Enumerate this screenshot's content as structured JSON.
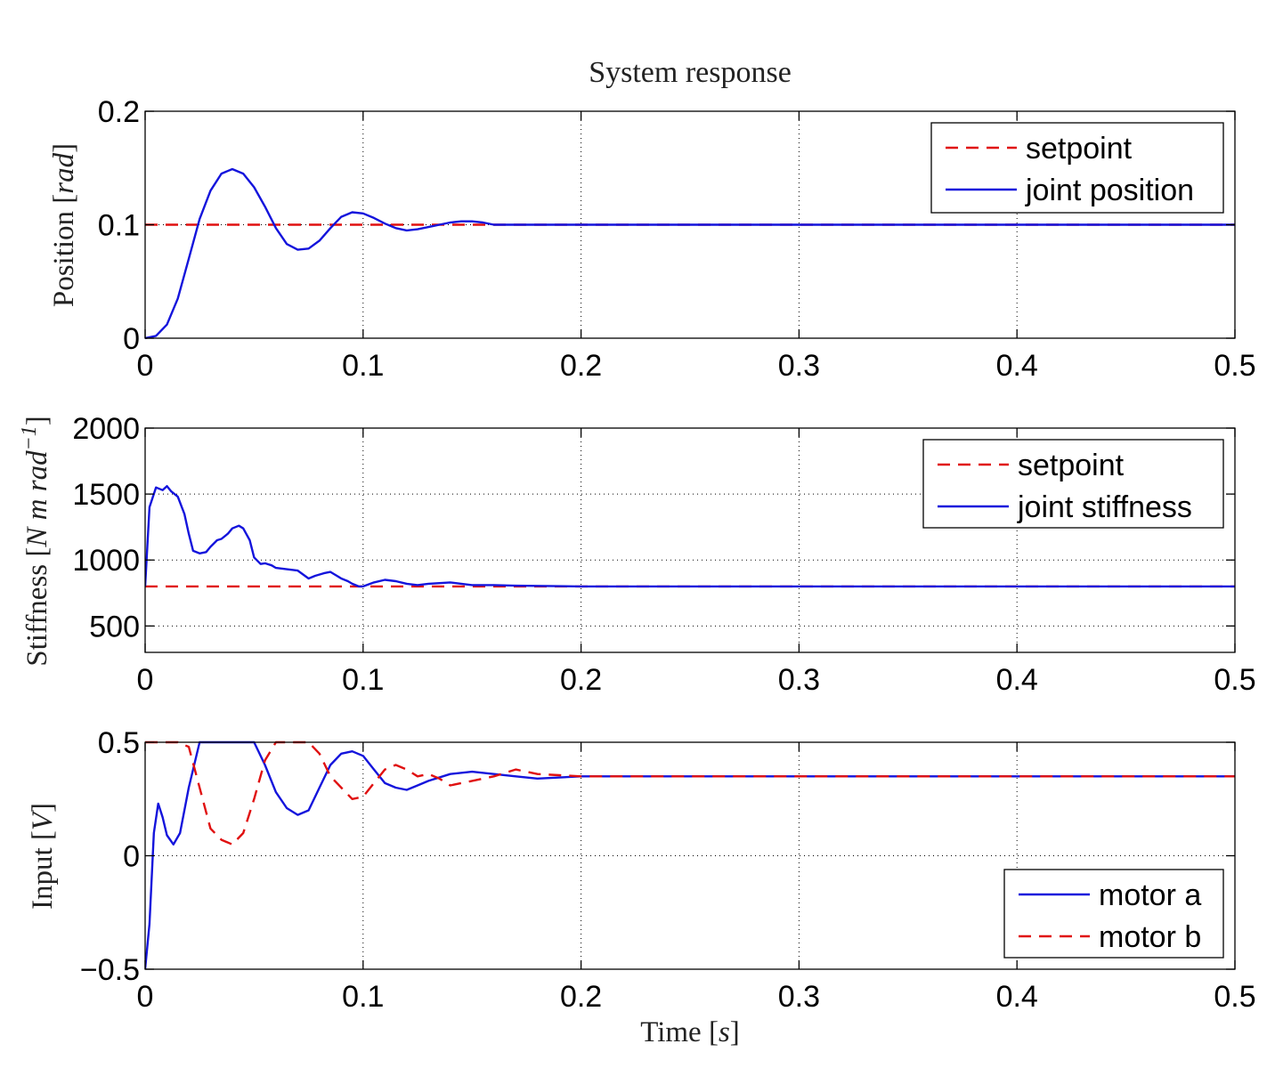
{
  "title": "System response",
  "xlabel": "Time",
  "xlabel_unit": "s",
  "colors": {
    "setpoint": "#e01010",
    "response": "#1414dc",
    "grid": "#000000"
  },
  "chart_data": [
    {
      "type": "line",
      "name": "position",
      "ylabel": "Position",
      "ylabel_unit": "rad",
      "xlim": [
        0,
        0.5
      ],
      "ylim": [
        0,
        0.2
      ],
      "xticks": [
        0,
        0.1,
        0.2,
        0.3,
        0.4,
        0.5
      ],
      "xtick_labels": [
        "0",
        "0.1",
        "0.2",
        "0.3",
        "0.4",
        "0.5"
      ],
      "yticks": [
        0,
        0.1,
        0.2
      ],
      "ytick_labels": [
        "0",
        "0.1",
        "0.2"
      ],
      "grid": true,
      "legend_position": "top-right",
      "series": [
        {
          "name": "setpoint",
          "style": "dashed",
          "color": "#e01010",
          "x": [
            0,
            0.5
          ],
          "y": [
            0.1,
            0.1
          ]
        },
        {
          "name": "joint position",
          "style": "solid",
          "color": "#1414dc",
          "x": [
            0,
            0.005,
            0.01,
            0.015,
            0.02,
            0.025,
            0.03,
            0.035,
            0.04,
            0.045,
            0.05,
            0.055,
            0.06,
            0.065,
            0.07,
            0.075,
            0.08,
            0.085,
            0.09,
            0.095,
            0.1,
            0.105,
            0.11,
            0.115,
            0.12,
            0.125,
            0.13,
            0.135,
            0.14,
            0.145,
            0.15,
            0.155,
            0.16,
            0.17,
            0.18,
            0.2,
            0.23,
            0.25,
            0.3,
            0.35,
            0.4,
            0.45,
            0.5
          ],
          "y": [
            0,
            0.002,
            0.012,
            0.035,
            0.07,
            0.105,
            0.13,
            0.145,
            0.149,
            0.145,
            0.133,
            0.116,
            0.097,
            0.083,
            0.078,
            0.079,
            0.086,
            0.097,
            0.107,
            0.111,
            0.11,
            0.106,
            0.101,
            0.097,
            0.095,
            0.096,
            0.098,
            0.1,
            0.102,
            0.103,
            0.103,
            0.102,
            0.1,
            0.1,
            0.1,
            0.1,
            0.1,
            0.1,
            0.1,
            0.1,
            0.1,
            0.1,
            0.1
          ]
        }
      ],
      "legend": [
        "setpoint",
        "joint position"
      ]
    },
    {
      "type": "line",
      "name": "stiffness",
      "ylabel": "Stiffness",
      "ylabel_unit": "N m rad",
      "ylabel_exponent": "−1",
      "xlim": [
        0,
        0.5
      ],
      "ylim": [
        300,
        2000
      ],
      "xticks": [
        0,
        0.1,
        0.2,
        0.3,
        0.4,
        0.5
      ],
      "xtick_labels": [
        "0",
        "0.1",
        "0.2",
        "0.3",
        "0.4",
        "0.5"
      ],
      "yticks": [
        500,
        1000,
        1500,
        2000
      ],
      "ytick_labels": [
        "500",
        "1000",
        "1500",
        "2000"
      ],
      "grid": true,
      "legend_position": "top-right",
      "series": [
        {
          "name": "setpoint",
          "style": "dashed",
          "color": "#e01010",
          "x": [
            0,
            0.5
          ],
          "y": [
            800,
            800
          ]
        },
        {
          "name": "joint stiffness",
          "style": "solid",
          "color": "#1414dc",
          "x": [
            0,
            0.002,
            0.005,
            0.008,
            0.01,
            0.012,
            0.015,
            0.018,
            0.02,
            0.022,
            0.025,
            0.028,
            0.03,
            0.033,
            0.035,
            0.038,
            0.04,
            0.043,
            0.045,
            0.048,
            0.05,
            0.053,
            0.055,
            0.058,
            0.06,
            0.065,
            0.07,
            0.075,
            0.078,
            0.082,
            0.085,
            0.088,
            0.09,
            0.093,
            0.095,
            0.098,
            0.1,
            0.105,
            0.11,
            0.115,
            0.12,
            0.125,
            0.13,
            0.14,
            0.15,
            0.16,
            0.17,
            0.2,
            0.25,
            0.3,
            0.35,
            0.4,
            0.45,
            0.5
          ],
          "y": [
            800,
            1400,
            1550,
            1530,
            1560,
            1520,
            1480,
            1350,
            1200,
            1070,
            1050,
            1060,
            1100,
            1150,
            1160,
            1200,
            1240,
            1260,
            1240,
            1150,
            1020,
            970,
            975,
            960,
            940,
            930,
            920,
            860,
            880,
            900,
            910,
            880,
            860,
            840,
            820,
            800,
            800,
            830,
            850,
            840,
            820,
            810,
            820,
            830,
            810,
            810,
            805,
            800,
            800,
            800,
            800,
            800,
            800,
            800
          ]
        }
      ],
      "legend": [
        "setpoint",
        "joint stiffness"
      ]
    },
    {
      "type": "line",
      "name": "input",
      "ylabel": "Input",
      "ylabel_unit": "V",
      "xlim": [
        0,
        0.5
      ],
      "ylim": [
        -0.5,
        0.5
      ],
      "xticks": [
        0,
        0.1,
        0.2,
        0.3,
        0.4,
        0.5
      ],
      "xtick_labels": [
        "0",
        "0.1",
        "0.2",
        "0.3",
        "0.4",
        "0.5"
      ],
      "yticks": [
        -0.5,
        0,
        0.5
      ],
      "ytick_labels": [
        "−0.5",
        "0",
        "0.5"
      ],
      "grid": true,
      "legend_position": "bottom-right",
      "series": [
        {
          "name": "motor a",
          "style": "solid",
          "color": "#1414dc",
          "x": [
            0,
            0.002,
            0.004,
            0.006,
            0.008,
            0.01,
            0.013,
            0.016,
            0.02,
            0.025,
            0.03,
            0.035,
            0.04,
            0.045,
            0.05,
            0.055,
            0.06,
            0.065,
            0.07,
            0.075,
            0.08,
            0.085,
            0.09,
            0.095,
            0.1,
            0.105,
            0.11,
            0.115,
            0.12,
            0.125,
            0.13,
            0.14,
            0.15,
            0.16,
            0.17,
            0.18,
            0.2,
            0.25,
            0.3,
            0.35,
            0.4,
            0.45,
            0.5
          ],
          "y": [
            -0.5,
            -0.3,
            0.1,
            0.23,
            0.17,
            0.09,
            0.05,
            0.1,
            0.3,
            0.5,
            0.5,
            0.5,
            0.5,
            0.5,
            0.5,
            0.4,
            0.28,
            0.21,
            0.18,
            0.2,
            0.3,
            0.4,
            0.45,
            0.46,
            0.44,
            0.38,
            0.32,
            0.3,
            0.29,
            0.31,
            0.33,
            0.36,
            0.37,
            0.36,
            0.35,
            0.34,
            0.35,
            0.35,
            0.35,
            0.35,
            0.35,
            0.35,
            0.35
          ]
        },
        {
          "name": "motor b",
          "style": "dashed",
          "color": "#e01010",
          "x": [
            0,
            0.01,
            0.015,
            0.02,
            0.025,
            0.03,
            0.035,
            0.04,
            0.045,
            0.05,
            0.055,
            0.06,
            0.065,
            0.07,
            0.075,
            0.08,
            0.085,
            0.09,
            0.095,
            0.1,
            0.105,
            0.11,
            0.115,
            0.12,
            0.125,
            0.13,
            0.135,
            0.14,
            0.15,
            0.16,
            0.17,
            0.18,
            0.2,
            0.25,
            0.3,
            0.35,
            0.4,
            0.45,
            0.5
          ],
          "y": [
            0.5,
            0.5,
            0.5,
            0.48,
            0.3,
            0.12,
            0.07,
            0.05,
            0.1,
            0.25,
            0.42,
            0.5,
            0.5,
            0.5,
            0.5,
            0.45,
            0.35,
            0.3,
            0.25,
            0.26,
            0.32,
            0.38,
            0.4,
            0.38,
            0.35,
            0.36,
            0.34,
            0.31,
            0.33,
            0.35,
            0.38,
            0.36,
            0.35,
            0.35,
            0.35,
            0.35,
            0.35,
            0.35,
            0.35
          ]
        }
      ],
      "legend": [
        "motor a",
        "motor b"
      ]
    }
  ]
}
